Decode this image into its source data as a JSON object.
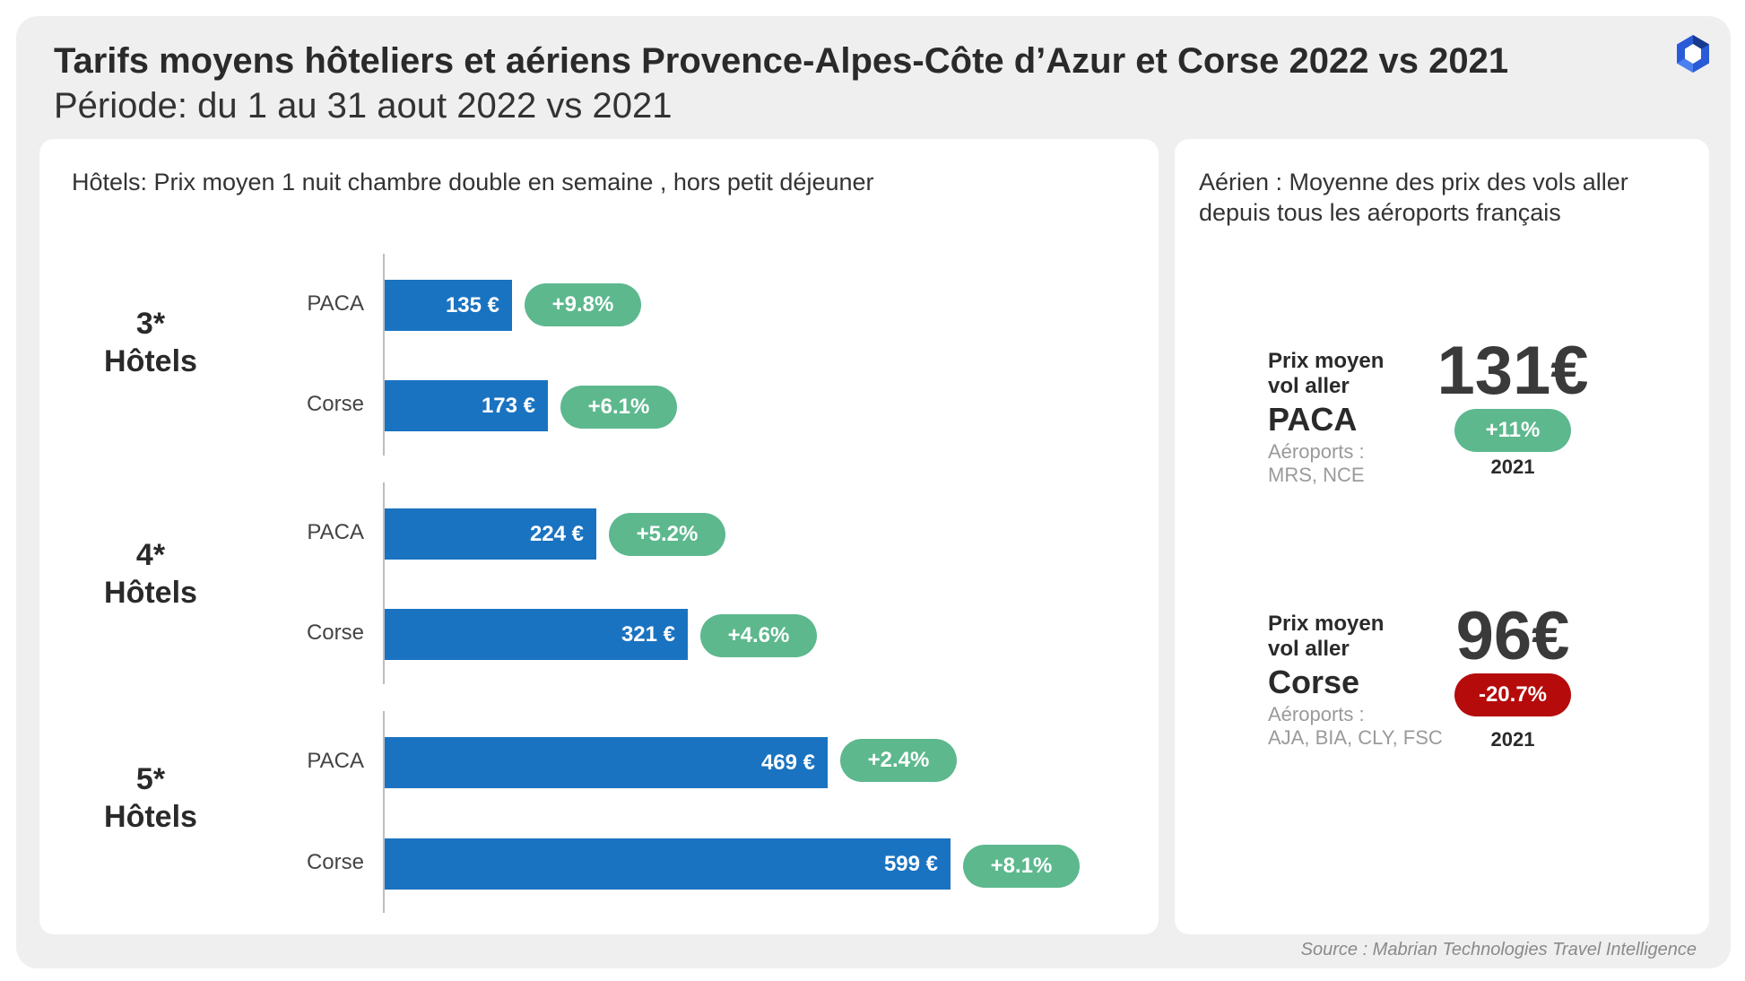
{
  "header": {
    "title": "Tarifs moyens hôteliers et aériens Provence-Alpes-Côte d’Azur et Corse 2022 vs 2021",
    "subtitle": "Période: du 1 au 31 aout 2022 vs 2021"
  },
  "icons": {
    "logo": "hexagon-logo-icon"
  },
  "colors": {
    "bar": "#1a73c1",
    "pill_positive": "#5db88e",
    "pill_negative": "#b50b0b"
  },
  "hotels": {
    "heading": "Hôtels: Prix moyen 1 nuit chambre double en semaine , hors petit déjeuner"
  },
  "chart_data": {
    "type": "bar",
    "orientation": "horizontal",
    "title": "Hôtels: Prix moyen 1 nuit chambre double en semaine , hors petit déjeuner",
    "xlabel": "",
    "ylabel": "",
    "groups": [
      {
        "label_line1": "3*",
        "label_line2": "Hôtels",
        "rows": [
          {
            "label": "PACA",
            "value": 135,
            "value_label": "135 €",
            "change": "+9.8%"
          },
          {
            "label": "Corse",
            "value": 173,
            "value_label": "173 €",
            "change": "+6.1%"
          }
        ]
      },
      {
        "label_line1": "4*",
        "label_line2": "Hôtels",
        "rows": [
          {
            "label": "PACA",
            "value": 224,
            "value_label": "224 €",
            "change": "+5.2%"
          },
          {
            "label": "Corse",
            "value": 321,
            "value_label": "321 €",
            "change": "+4.6%"
          }
        ]
      },
      {
        "label_line1": "5*",
        "label_line2": "Hôtels",
        "rows": [
          {
            "label": "PACA",
            "value": 469,
            "value_label": "469 €",
            "change": "+2.4%"
          },
          {
            "label": "Corse",
            "value": 599,
            "value_label": "599 €",
            "change": "+8.1%"
          }
        ]
      }
    ]
  },
  "flights": {
    "heading": "Aérien : Moyenne des prix des vols aller depuis tous les aéroports français",
    "items": [
      {
        "title_line1": "Prix moyen",
        "title_line2": "vol aller",
        "city": "PACA",
        "airports_line1": "Aéroports :",
        "airports_line2": "MRS, NCE",
        "price": "131€",
        "change": "+11%",
        "change_sign": "positive",
        "year": "2021"
      },
      {
        "title_line1": "Prix moyen",
        "title_line2": "vol aller",
        "city": "Corse",
        "airports_line1": "Aéroports :",
        "airports_line2": "AJA, BIA, CLY, FSC",
        "price": "96€",
        "change": "-20.7%",
        "change_sign": "negative",
        "year": "2021"
      }
    ]
  },
  "footer": {
    "source": "Source : Mabrian Technologies Travel Intelligence"
  }
}
